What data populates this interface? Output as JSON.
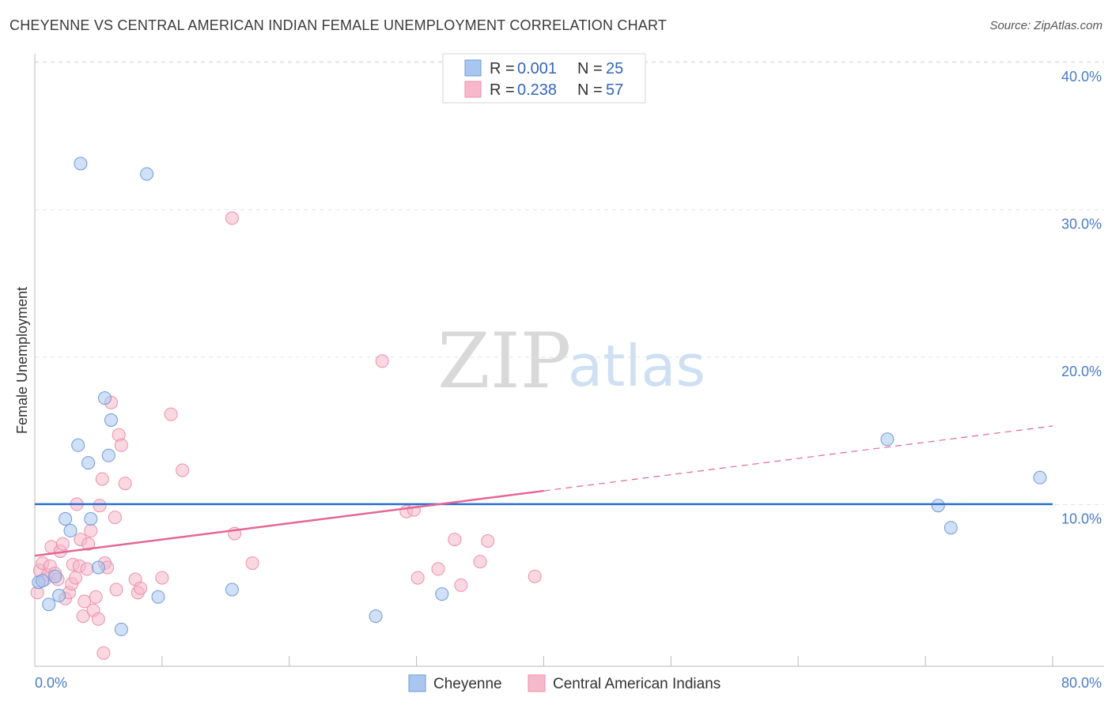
{
  "header": {
    "title": "CHEYENNE VS CENTRAL AMERICAN INDIAN FEMALE UNEMPLOYMENT CORRELATION CHART",
    "source": "Source: ZipAtlas.com"
  },
  "watermark": {
    "zip": "ZIP",
    "atlas": "atlas"
  },
  "legend": {
    "items": [
      {
        "r_label": "R = ",
        "r_value": "0.001",
        "n_label": "N = ",
        "n_value": "25",
        "color": "#a9c6ee"
      },
      {
        "r_label": "R = ",
        "r_value": "0.238",
        "n_label": "N = ",
        "n_value": "57",
        "color": "#f6b8cb"
      }
    ]
  },
  "chart_data": {
    "type": "scatter",
    "title": "CHEYENNE VS CENTRAL AMERICAN INDIAN FEMALE UNEMPLOYMENT CORRELATION CHART",
    "xlabel": "",
    "ylabel": "Female Unemployment",
    "xlim": [
      0,
      80
    ],
    "ylim": [
      0,
      40
    ],
    "x_tick_labels": [
      "0.0%",
      "80.0%"
    ],
    "y_ticks": [
      10,
      20,
      30,
      40
    ],
    "y_tick_labels": [
      "10.0%",
      "20.0%",
      "30.0%",
      "40.0%"
    ],
    "grid": true,
    "series": [
      {
        "name": "Cheyenne",
        "color": "#a9c6ee",
        "stroke": "#6f9bd8",
        "line_color": "#2f6fd0",
        "trend": {
          "x": [
            0,
            80
          ],
          "y": [
            11.0,
            11.0
          ],
          "dashed_from": null
        },
        "points": [
          [
            0.3,
            5.7
          ],
          [
            0.6,
            5.8
          ],
          [
            1.1,
            4.2
          ],
          [
            1.6,
            6.1
          ],
          [
            1.9,
            4.8
          ],
          [
            2.4,
            10.0
          ],
          [
            2.8,
            9.2
          ],
          [
            3.4,
            15.0
          ],
          [
            4.2,
            13.8
          ],
          [
            4.4,
            10.0
          ],
          [
            5.0,
            6.7
          ],
          [
            5.5,
            18.2
          ],
          [
            5.8,
            14.3
          ],
          [
            6.0,
            16.7
          ],
          [
            6.8,
            2.5
          ],
          [
            3.6,
            34.1
          ],
          [
            8.8,
            33.4
          ],
          [
            9.7,
            4.7
          ],
          [
            15.5,
            5.2
          ],
          [
            26.8,
            3.4
          ],
          [
            32.0,
            4.9
          ],
          [
            67.0,
            15.4
          ],
          [
            71.0,
            10.9
          ],
          [
            72.0,
            9.4
          ],
          [
            79.0,
            12.8
          ]
        ]
      },
      {
        "name": "Central American Indians",
        "color": "#f6b8cb",
        "stroke": "#ec8fac",
        "line_color": "#e46694",
        "trend": {
          "x": [
            0,
            80
          ],
          "y": [
            7.5,
            16.3
          ],
          "solid_until": 40
        },
        "points": [
          [
            0.2,
            5.0
          ],
          [
            0.4,
            6.5
          ],
          [
            0.6,
            7.0
          ],
          [
            0.8,
            5.9
          ],
          [
            1.0,
            6.2
          ],
          [
            1.2,
            6.8
          ],
          [
            1.3,
            8.1
          ],
          [
            1.6,
            6.3
          ],
          [
            1.8,
            5.9
          ],
          [
            2.0,
            7.8
          ],
          [
            2.2,
            8.3
          ],
          [
            2.4,
            4.6
          ],
          [
            2.7,
            5.0
          ],
          [
            2.9,
            5.6
          ],
          [
            3.0,
            6.9
          ],
          [
            3.2,
            6.0
          ],
          [
            3.3,
            11.0
          ],
          [
            3.5,
            6.8
          ],
          [
            3.6,
            8.6
          ],
          [
            3.8,
            3.4
          ],
          [
            3.9,
            4.4
          ],
          [
            4.1,
            6.6
          ],
          [
            4.2,
            8.3
          ],
          [
            4.4,
            9.2
          ],
          [
            4.6,
            3.8
          ],
          [
            4.8,
            4.7
          ],
          [
            5.0,
            3.2
          ],
          [
            5.1,
            10.9
          ],
          [
            5.3,
            12.7
          ],
          [
            5.5,
            7.0
          ],
          [
            5.7,
            6.7
          ],
          [
            6.0,
            17.9
          ],
          [
            6.3,
            10.1
          ],
          [
            6.4,
            5.2
          ],
          [
            6.6,
            15.7
          ],
          [
            6.8,
            15.0
          ],
          [
            7.1,
            12.4
          ],
          [
            7.9,
            5.9
          ],
          [
            8.1,
            5.0
          ],
          [
            8.3,
            5.3
          ],
          [
            10.0,
            6.0
          ],
          [
            10.7,
            17.1
          ],
          [
            11.6,
            13.3
          ],
          [
            15.5,
            30.4
          ],
          [
            15.7,
            9.0
          ],
          [
            17.1,
            7.0
          ],
          [
            27.3,
            20.7
          ],
          [
            29.2,
            10.5
          ],
          [
            29.8,
            10.6
          ],
          [
            30.1,
            6.0
          ],
          [
            31.7,
            6.6
          ],
          [
            33.0,
            8.6
          ],
          [
            33.5,
            5.5
          ],
          [
            35.0,
            7.1
          ],
          [
            35.6,
            8.5
          ],
          [
            39.3,
            6.1
          ],
          [
            5.4,
            0.9
          ]
        ]
      }
    ]
  }
}
